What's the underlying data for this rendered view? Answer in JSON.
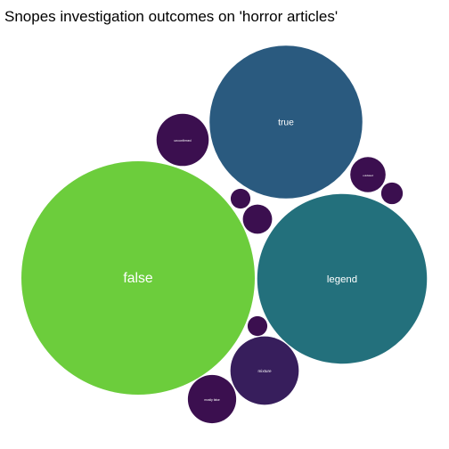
{
  "chart_data": {
    "type": "bubble-pack",
    "title": "Snopes investigation outcomes on 'horror articles'",
    "colors": {
      "false": "#6ccd3c",
      "legend": "#23707c",
      "true": "#2a5a7f",
      "mixture": "#371e5c",
      "other": "#3b0f4f"
    },
    "bubbles": [
      {
        "label": "false",
        "value": 70,
        "show_label": true
      },
      {
        "label": "legend",
        "value": 37,
        "show_label": true
      },
      {
        "label": "true",
        "value": 30,
        "show_label": true
      },
      {
        "label": "mixture",
        "value": 6,
        "show_label": true
      },
      {
        "label": "unconfirmed",
        "value": 3.5,
        "show_label": true
      },
      {
        "label": "mostly false",
        "value": 3,
        "show_label": true
      },
      {
        "label": "outdated",
        "value": 1.6,
        "show_label": true
      },
      {
        "label": "",
        "value": 1.1,
        "show_label": false
      },
      {
        "label": "",
        "value": 0.6,
        "show_label": false
      },
      {
        "label": "",
        "value": 0.5,
        "show_label": false
      },
      {
        "label": "",
        "value": 0.5,
        "show_label": false
      }
    ]
  }
}
